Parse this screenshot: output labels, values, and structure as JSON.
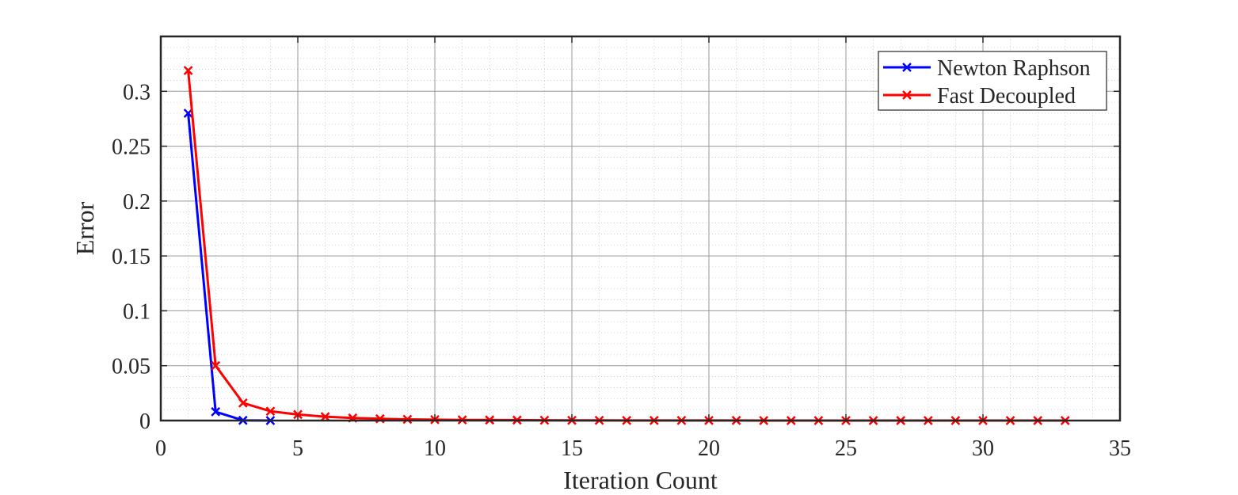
{
  "chart_data": {
    "type": "line",
    "title": "",
    "xlabel": "Iteration Count",
    "ylabel": "Error",
    "xlim": [
      0,
      35
    ],
    "ylim": [
      0,
      0.35
    ],
    "x_ticks": [
      0,
      5,
      10,
      15,
      20,
      25,
      30,
      35
    ],
    "x_tick_labels": [
      "0",
      "5",
      "10",
      "15",
      "20",
      "25",
      "30",
      "35"
    ],
    "y_ticks": [
      0,
      0.05,
      0.1,
      0.15,
      0.2,
      0.25,
      0.3
    ],
    "y_tick_labels": [
      "0",
      "0.05",
      "0.1",
      "0.15",
      "0.2",
      "0.25",
      "0.3"
    ],
    "grid": true,
    "minor_grid": true,
    "legend_position": "top-right",
    "marker": "x",
    "series": [
      {
        "name": "Newton Raphson",
        "color": "#0000ff",
        "x": [
          1,
          2,
          3,
          4
        ],
        "y": [
          0.28,
          0.008,
          0.0002,
          0.0
        ]
      },
      {
        "name": "Fast Decoupled",
        "color": "#ff0000",
        "x": [
          1,
          2,
          3,
          4,
          5,
          6,
          7,
          8,
          9,
          10,
          11,
          12,
          13,
          14,
          15,
          16,
          17,
          18,
          19,
          20,
          21,
          22,
          23,
          24,
          25,
          26,
          27,
          28,
          29,
          30,
          31,
          32,
          33
        ],
        "y": [
          0.319,
          0.05,
          0.016,
          0.0085,
          0.0055,
          0.0035,
          0.0023,
          0.0016,
          0.0011,
          0.0008,
          0.0006,
          0.0005,
          0.0004,
          0.0003,
          0.0002,
          0.0002,
          0.0001,
          0.0001,
          0.0001,
          0.0001,
          0.0001,
          0.0,
          0.0,
          0.0,
          0.0,
          0.0,
          0.0,
          0.0,
          0.0,
          0.0,
          0.0,
          0.0,
          0.0
        ]
      }
    ]
  }
}
